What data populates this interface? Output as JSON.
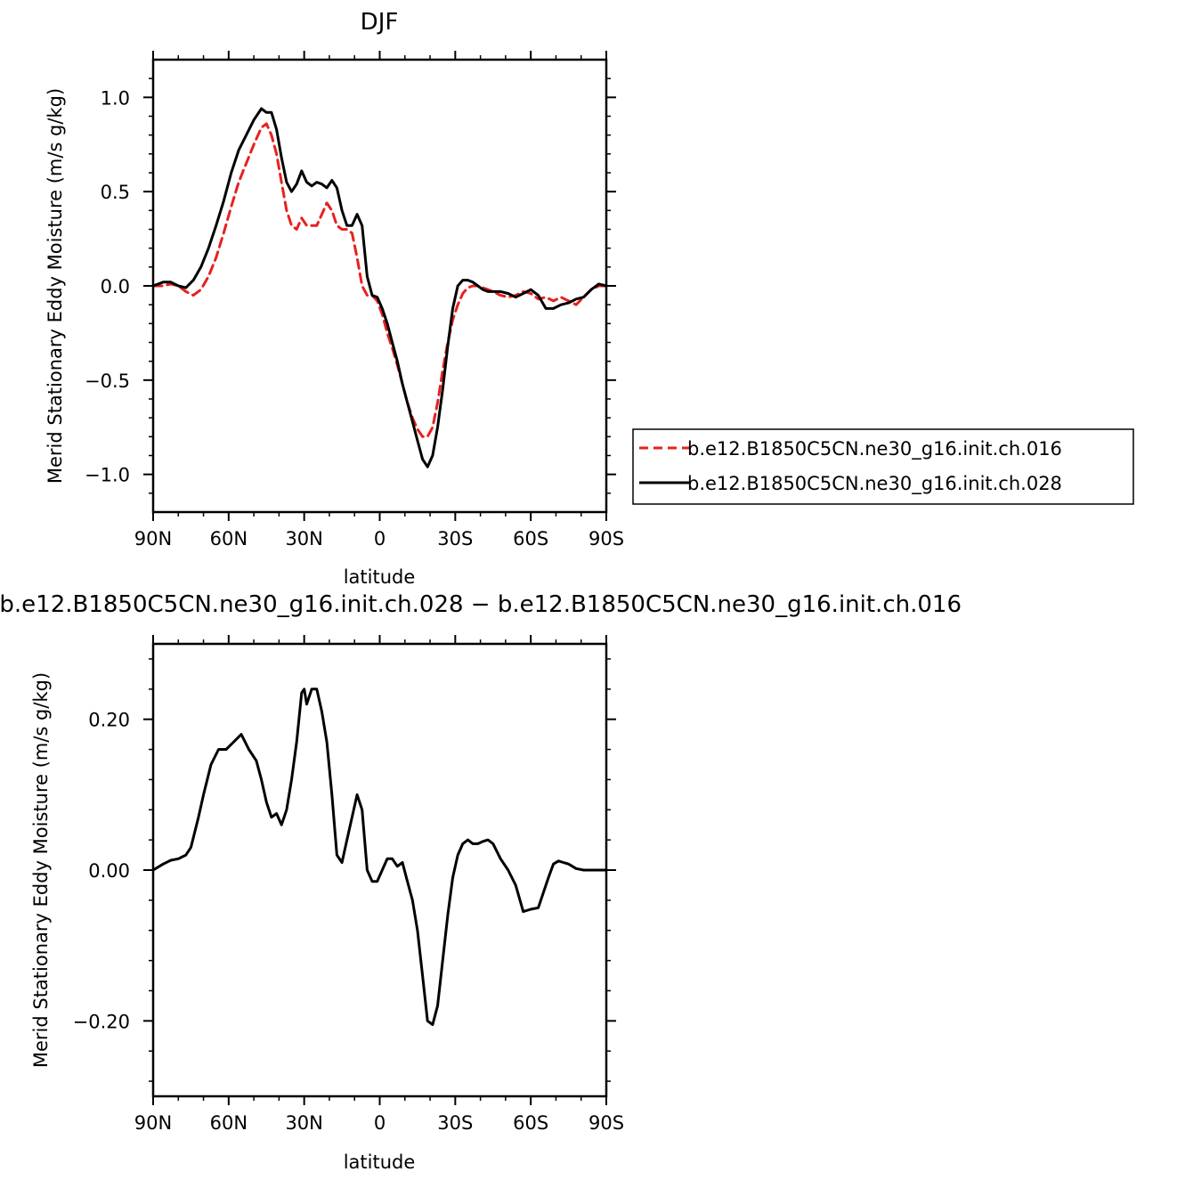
{
  "chart_data": [
    {
      "type": "line",
      "title": "DJF",
      "xlabel": "latitude",
      "ylabel": "Merid Stationary Eddy Moisture (m/s g/kg)",
      "xlim": [
        90,
        -90
      ],
      "ylim": [
        -1.2,
        1.2
      ],
      "x_ticks": [
        90,
        60,
        30,
        0,
        -30,
        -60,
        -90
      ],
      "x_tick_labels": [
        "90N",
        "60N",
        "30N",
        "0",
        "30S",
        "60S",
        "90S"
      ],
      "y_ticks": [
        1.0,
        0.5,
        0.0,
        -0.5,
        -1.0
      ],
      "y_tick_labels": [
        "1.0",
        "0.5",
        "0.0",
        "−0.5",
        "−1.0"
      ],
      "legend_position": "right",
      "series": [
        {
          "name": "b.e12.B1850C5CN.ne30_g16.init.ch.016",
          "color": "#e8201f",
          "dash": "dashed",
          "x": [
            90,
            86,
            83,
            80,
            77,
            74,
            71,
            68,
            65,
            62,
            59,
            56,
            53,
            50,
            47,
            45,
            43,
            41,
            39,
            37,
            35,
            33,
            31,
            29,
            27,
            25,
            23,
            21,
            19,
            17,
            15,
            13,
            11,
            9,
            7,
            5,
            3,
            1,
            -1,
            -3,
            -5,
            -7,
            -9,
            -11,
            -13,
            -15,
            -17,
            -19,
            -21,
            -23,
            -25,
            -27,
            -29,
            -31,
            -33,
            -35,
            -37,
            -39,
            -41,
            -43,
            -45,
            -48,
            -51,
            -54,
            -57,
            -60,
            -63,
            -66,
            -69,
            -72,
            -75,
            -78,
            -81,
            -84,
            -87,
            -90
          ],
          "y": [
            0.0,
            0.0,
            0.01,
            0.0,
            -0.03,
            -0.05,
            -0.02,
            0.05,
            0.15,
            0.28,
            0.42,
            0.55,
            0.65,
            0.75,
            0.84,
            0.86,
            0.8,
            0.7,
            0.55,
            0.4,
            0.32,
            0.3,
            0.36,
            0.32,
            0.32,
            0.32,
            0.38,
            0.44,
            0.4,
            0.32,
            0.3,
            0.3,
            0.28,
            0.15,
            0.0,
            -0.05,
            -0.05,
            -0.08,
            -0.15,
            -0.25,
            -0.33,
            -0.42,
            -0.52,
            -0.62,
            -0.7,
            -0.76,
            -0.8,
            -0.8,
            -0.75,
            -0.62,
            -0.45,
            -0.3,
            -0.18,
            -0.1,
            -0.04,
            -0.01,
            0.0,
            0.0,
            -0.01,
            -0.02,
            -0.03,
            -0.05,
            -0.06,
            -0.05,
            -0.03,
            -0.04,
            -0.07,
            -0.06,
            -0.08,
            -0.06,
            -0.08,
            -0.1,
            -0.06,
            -0.02,
            0.0,
            0.0
          ]
        },
        {
          "name": "b.e12.B1850C5CN.ne30_g16.init.ch.028",
          "color": "#000000",
          "dash": "solid",
          "x": [
            90,
            86,
            83,
            80,
            77,
            74,
            71,
            68,
            65,
            62,
            59,
            56,
            53,
            50,
            47,
            45,
            43,
            41,
            39,
            37,
            35,
            33,
            31,
            29,
            27,
            25,
            23,
            21,
            19,
            17,
            15,
            13,
            11,
            9,
            7,
            5,
            3,
            1,
            -1,
            -3,
            -5,
            -7,
            -9,
            -11,
            -13,
            -15,
            -17,
            -19,
            -21,
            -23,
            -25,
            -27,
            -29,
            -31,
            -33,
            -35,
            -37,
            -39,
            -41,
            -43,
            -45,
            -48,
            -51,
            -54,
            -57,
            -60,
            -63,
            -66,
            -69,
            -72,
            -75,
            -78,
            -81,
            -84,
            -87,
            -90
          ],
          "y": [
            0.0,
            0.02,
            0.02,
            0.0,
            -0.01,
            0.03,
            0.1,
            0.2,
            0.32,
            0.45,
            0.6,
            0.72,
            0.8,
            0.88,
            0.94,
            0.92,
            0.92,
            0.83,
            0.68,
            0.55,
            0.5,
            0.54,
            0.61,
            0.55,
            0.53,
            0.55,
            0.54,
            0.52,
            0.56,
            0.52,
            0.4,
            0.32,
            0.32,
            0.38,
            0.32,
            0.05,
            -0.05,
            -0.06,
            -0.12,
            -0.2,
            -0.3,
            -0.4,
            -0.52,
            -0.62,
            -0.72,
            -0.82,
            -0.92,
            -0.96,
            -0.9,
            -0.75,
            -0.55,
            -0.32,
            -0.12,
            0.0,
            0.03,
            0.03,
            0.02,
            0.0,
            -0.02,
            -0.03,
            -0.03,
            -0.03,
            -0.04,
            -0.06,
            -0.04,
            -0.02,
            -0.05,
            -0.12,
            -0.12,
            -0.1,
            -0.09,
            -0.07,
            -0.06,
            -0.02,
            0.01,
            0.0
          ]
        }
      ]
    },
    {
      "type": "line",
      "title": "b.e12.B1850C5CN.ne30_g16.init.ch.028 − b.e12.B1850C5CN.ne30_g16.init.ch.016",
      "xlabel": "latitude",
      "ylabel": "Merid Stationary Eddy Moisture (m/s g/kg)",
      "xlim": [
        90,
        -90
      ],
      "ylim": [
        -0.3,
        0.3
      ],
      "x_ticks": [
        90,
        60,
        30,
        0,
        -30,
        -60,
        -90
      ],
      "x_tick_labels": [
        "90N",
        "60N",
        "30N",
        "0",
        "30S",
        "60S",
        "90S"
      ],
      "y_ticks": [
        0.2,
        0.0,
        -0.2
      ],
      "y_tick_labels": [
        "0.20",
        "0.00",
        "−0.20"
      ],
      "series": [
        {
          "color": "#000000",
          "dash": "solid",
          "x": [
            90,
            86,
            83,
            80,
            77,
            75,
            72,
            70,
            67,
            64,
            61,
            58,
            55,
            52,
            49,
            47,
            45,
            43,
            41,
            39,
            37,
            35,
            33,
            31,
            30,
            29,
            27,
            25,
            23,
            21,
            19,
            17,
            15,
            13,
            11,
            9,
            7,
            5,
            3,
            1,
            -1,
            -3,
            -5,
            -7,
            -9,
            -11,
            -13,
            -15,
            -17,
            -19,
            -21,
            -23,
            -25,
            -27,
            -29,
            -31,
            -33,
            -35,
            -37,
            -39,
            -41,
            -43,
            -45,
            -48,
            -51,
            -54,
            -57,
            -60,
            -63,
            -65,
            -67,
            -69,
            -71,
            -73,
            -75,
            -78,
            -81,
            -84,
            -87,
            -90
          ],
          "y": [
            0.0,
            0.008,
            0.013,
            0.015,
            0.02,
            0.03,
            0.07,
            0.1,
            0.14,
            0.16,
            0.16,
            0.17,
            0.18,
            0.16,
            0.145,
            0.12,
            0.09,
            0.07,
            0.075,
            0.06,
            0.08,
            0.12,
            0.17,
            0.235,
            0.24,
            0.22,
            0.24,
            0.24,
            0.21,
            0.17,
            0.1,
            0.02,
            0.01,
            0.04,
            0.07,
            0.1,
            0.08,
            0.0,
            -0.015,
            -0.015,
            0.0,
            0.015,
            0.015,
            0.005,
            0.01,
            -0.015,
            -0.04,
            -0.08,
            -0.14,
            -0.2,
            -0.205,
            -0.18,
            -0.12,
            -0.06,
            -0.01,
            0.02,
            0.035,
            0.04,
            0.035,
            0.035,
            0.038,
            0.04,
            0.035,
            0.015,
            0.0,
            -0.02,
            -0.055,
            -0.052,
            -0.05,
            -0.03,
            -0.01,
            0.008,
            0.012,
            0.01,
            0.008,
            0.002,
            0.0,
            0.0,
            0.0,
            0.0
          ]
        }
      ]
    }
  ]
}
